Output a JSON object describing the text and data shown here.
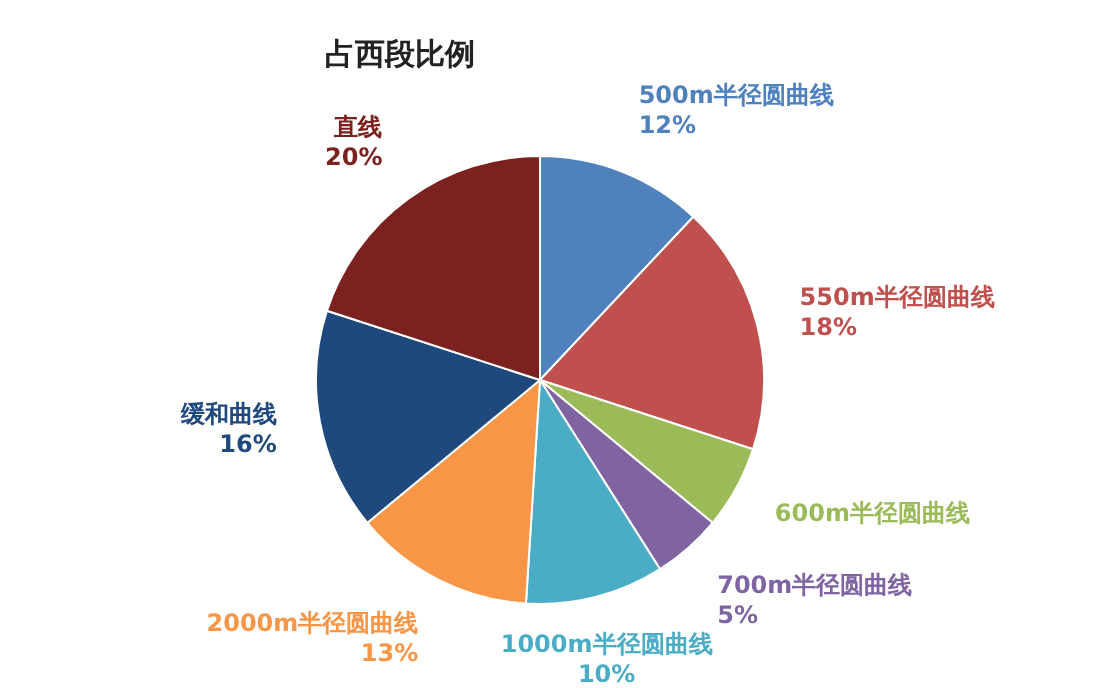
{
  "chart_data": {
    "type": "pie",
    "title": "占西段比例",
    "categories": [
      "500m半径圆曲线",
      "550m半径圆曲线",
      "600m半径圆曲线",
      "700m半径圆曲线",
      "1000m半径圆曲线",
      "2000m半径圆曲线",
      "缓和曲线",
      "直线"
    ],
    "values": [
      12,
      18,
      6,
      5,
      10,
      13,
      16,
      20
    ],
    "value_labels": [
      "12%",
      "18%",
      null,
      "5%",
      "10%",
      "13%",
      "16%",
      "20%"
    ],
    "colors": [
      "#4f81bd",
      "#c0504d",
      "#9bbb59",
      "#8064a2",
      "#4bacc6",
      "#f79646",
      "#1f497d",
      "#7b2220"
    ]
  }
}
